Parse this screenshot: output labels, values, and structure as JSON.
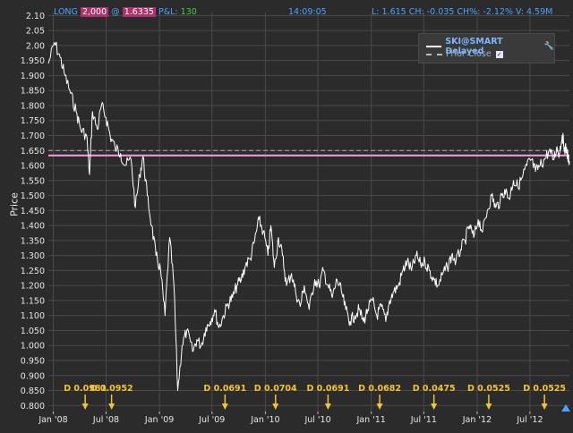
{
  "header": {
    "position_side": "LONG",
    "position_qty": "2,000",
    "at_symbol": "@",
    "position_price": "1.6335",
    "pnl_label": "P&L:",
    "pnl_value": "130",
    "time": "14:09:05",
    "quote": "L: 1.615 CH: -0.035 CH%: -2.12% V: 4.59M"
  },
  "legend": {
    "series_label": "SKI@SMART Delayed",
    "prior_close_label": "Prior Close"
  },
  "colors": {
    "background": "#2b2b2b",
    "grid": "#4a4a4a",
    "price_line": "#ffffff",
    "position_line": "#ff99dd",
    "prior_close_line": "#aaaaaa",
    "dividend_marker": "#f4c430",
    "accent_text": "#4aa3ff"
  },
  "chart_data": {
    "type": "line",
    "ylabel": "Price",
    "xlabel": "",
    "ylim": [
      0.78,
      2.11
    ],
    "yticks": [
      "0.800",
      "0.850",
      "0.900",
      "0.950",
      "1.000",
      "1.050",
      "1.100",
      "1.150",
      "1.200",
      "1.250",
      "1.300",
      "1.350",
      "1.400",
      "1.450",
      "1.500",
      "1.550",
      "1.600",
      "1.650",
      "1.700",
      "1.750",
      "1.800",
      "1.850",
      "1.900",
      "1.950",
      "2.00",
      "2.05",
      "2.10"
    ],
    "xlim": [
      "2007-12-15",
      "2012-11-14"
    ],
    "xticks": [
      {
        "date": "2008-01-01",
        "label": "Jan '08"
      },
      {
        "date": "2008-07-01",
        "label": "Jul '08"
      },
      {
        "date": "2009-01-01",
        "label": "Jan '09"
      },
      {
        "date": "2009-07-01",
        "label": "Jul '09"
      },
      {
        "date": "2010-01-01",
        "label": "Jan '10"
      },
      {
        "date": "2010-07-01",
        "label": "Jul '10"
      },
      {
        "date": "2011-01-01",
        "label": "Jan '11"
      },
      {
        "date": "2011-07-01",
        "label": "Jul '11"
      },
      {
        "date": "2012-01-01",
        "label": "Jan '12"
      },
      {
        "date": "2012-07-01",
        "label": "Jul '12"
      }
    ],
    "series": [
      {
        "name": "SKI@SMART Delayed",
        "points": [
          [
            "2007-12-15",
            1.94
          ],
          [
            "2008-01-05",
            2.01
          ],
          [
            "2008-01-25",
            1.96
          ],
          [
            "2008-02-10",
            1.9
          ],
          [
            "2008-03-01",
            1.84
          ],
          [
            "2008-03-20",
            1.78
          ],
          [
            "2008-04-05",
            1.72
          ],
          [
            "2008-04-25",
            1.7
          ],
          [
            "2008-05-05",
            1.57
          ],
          [
            "2008-05-15",
            1.78
          ],
          [
            "2008-06-01",
            1.72
          ],
          [
            "2008-06-15",
            1.8
          ],
          [
            "2008-07-01",
            1.76
          ],
          [
            "2008-07-15",
            1.7
          ],
          [
            "2008-08-01",
            1.66
          ],
          [
            "2008-08-20",
            1.64
          ],
          [
            "2008-09-05",
            1.6
          ],
          [
            "2008-09-25",
            1.62
          ],
          [
            "2008-10-10",
            1.46
          ],
          [
            "2008-10-25",
            1.57
          ],
          [
            "2008-11-05",
            1.63
          ],
          [
            "2008-11-20",
            1.5
          ],
          [
            "2008-12-05",
            1.4
          ],
          [
            "2008-12-20",
            1.3
          ],
          [
            "2009-01-05",
            1.25
          ],
          [
            "2009-01-20",
            1.1
          ],
          [
            "2009-02-05",
            1.36
          ],
          [
            "2009-02-20",
            1.2
          ],
          [
            "2009-03-05",
            0.85
          ],
          [
            "2009-03-20",
            1.0
          ],
          [
            "2009-04-05",
            1.05
          ],
          [
            "2009-04-25",
            0.98
          ],
          [
            "2009-05-10",
            1.02
          ],
          [
            "2009-05-25",
            1.0
          ],
          [
            "2009-06-10",
            1.06
          ],
          [
            "2009-06-25",
            1.08
          ],
          [
            "2009-07-10",
            1.12
          ],
          [
            "2009-07-25",
            1.06
          ],
          [
            "2009-08-10",
            1.1
          ],
          [
            "2009-08-25",
            1.14
          ],
          [
            "2009-09-10",
            1.16
          ],
          [
            "2009-09-25",
            1.2
          ],
          [
            "2009-10-10",
            1.22
          ],
          [
            "2009-10-25",
            1.27
          ],
          [
            "2009-11-10",
            1.29
          ],
          [
            "2009-11-25",
            1.35
          ],
          [
            "2009-12-10",
            1.42
          ],
          [
            "2009-12-25",
            1.38
          ],
          [
            "2010-01-10",
            1.3
          ],
          [
            "2010-01-20",
            1.4
          ],
          [
            "2010-02-01",
            1.26
          ],
          [
            "2010-02-15",
            1.36
          ],
          [
            "2010-03-01",
            1.3
          ],
          [
            "2010-03-15",
            1.2
          ],
          [
            "2010-04-01",
            1.24
          ],
          [
            "2010-04-15",
            1.18
          ],
          [
            "2010-05-01",
            1.13
          ],
          [
            "2010-05-15",
            1.2
          ],
          [
            "2010-06-01",
            1.12
          ],
          [
            "2010-06-20",
            1.22
          ],
          [
            "2010-07-05",
            1.2
          ],
          [
            "2010-07-20",
            1.25
          ],
          [
            "2010-08-05",
            1.2
          ],
          [
            "2010-08-20",
            1.16
          ],
          [
            "2010-09-05",
            1.22
          ],
          [
            "2010-09-20",
            1.18
          ],
          [
            "2010-10-05",
            1.12
          ],
          [
            "2010-10-20",
            1.08
          ],
          [
            "2010-11-05",
            1.1
          ],
          [
            "2010-11-20",
            1.12
          ],
          [
            "2010-12-05",
            1.08
          ],
          [
            "2010-12-20",
            1.12
          ],
          [
            "2011-01-05",
            1.15
          ],
          [
            "2011-01-20",
            1.1
          ],
          [
            "2011-02-05",
            1.13
          ],
          [
            "2011-02-20",
            1.08
          ],
          [
            "2011-03-05",
            1.15
          ],
          [
            "2011-03-20",
            1.18
          ],
          [
            "2011-04-05",
            1.2
          ],
          [
            "2011-04-20",
            1.25
          ],
          [
            "2011-05-05",
            1.28
          ],
          [
            "2011-05-20",
            1.25
          ],
          [
            "2011-06-05",
            1.3
          ],
          [
            "2011-06-20",
            1.27
          ],
          [
            "2011-07-05",
            1.28
          ],
          [
            "2011-07-20",
            1.25
          ],
          [
            "2011-08-05",
            1.22
          ],
          [
            "2011-08-20",
            1.2
          ],
          [
            "2011-09-05",
            1.24
          ],
          [
            "2011-09-20",
            1.26
          ],
          [
            "2011-10-05",
            1.3
          ],
          [
            "2011-10-20",
            1.28
          ],
          [
            "2011-11-05",
            1.32
          ],
          [
            "2011-11-20",
            1.35
          ],
          [
            "2011-12-05",
            1.4
          ],
          [
            "2011-12-20",
            1.36
          ],
          [
            "2012-01-05",
            1.42
          ],
          [
            "2012-01-20",
            1.38
          ],
          [
            "2012-02-05",
            1.45
          ],
          [
            "2012-02-20",
            1.5
          ],
          [
            "2012-03-05",
            1.46
          ],
          [
            "2012-03-20",
            1.48
          ],
          [
            "2012-04-05",
            1.52
          ],
          [
            "2012-04-20",
            1.49
          ],
          [
            "2012-05-05",
            1.55
          ],
          [
            "2012-05-20",
            1.53
          ],
          [
            "2012-06-05",
            1.56
          ],
          [
            "2012-06-20",
            1.6
          ],
          [
            "2012-07-05",
            1.62
          ],
          [
            "2012-07-20",
            1.58
          ],
          [
            "2012-08-05",
            1.6
          ],
          [
            "2012-08-20",
            1.62
          ],
          [
            "2012-09-05",
            1.65
          ],
          [
            "2012-09-20",
            1.62
          ],
          [
            "2012-10-01",
            1.66
          ],
          [
            "2012-10-10",
            1.64
          ],
          [
            "2012-10-20",
            1.7
          ],
          [
            "2012-10-28",
            1.66
          ],
          [
            "2012-11-05",
            1.65
          ],
          [
            "2012-11-10",
            1.62
          ],
          [
            "2012-11-14",
            1.615
          ]
        ]
      }
    ],
    "reference_lines": [
      {
        "kind": "position",
        "value": 1.6335
      },
      {
        "kind": "prior_close",
        "value": 1.65
      }
    ],
    "dividend_markers": [
      {
        "date": "2008-04-20",
        "label": "D 0.0981"
      },
      {
        "date": "2008-07-20",
        "label": "D 0.0952"
      },
      {
        "date": "2009-08-15",
        "label": "D 0.0691"
      },
      {
        "date": "2010-02-05",
        "label": "D 0.0704"
      },
      {
        "date": "2010-08-05",
        "label": "D 0.0691"
      },
      {
        "date": "2011-01-30",
        "label": "D 0.0682"
      },
      {
        "date": "2011-08-05",
        "label": "D 0.0475"
      },
      {
        "date": "2012-02-10",
        "label": "D 0.0525"
      },
      {
        "date": "2012-08-20",
        "label": "D 0.0525"
      }
    ],
    "grid": true,
    "legend_position": "top-right"
  }
}
